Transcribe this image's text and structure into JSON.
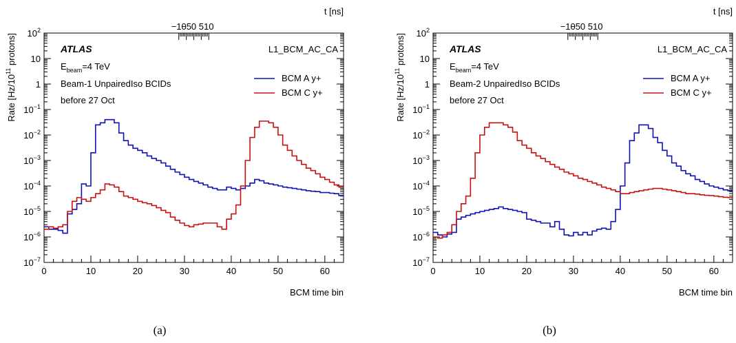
{
  "chart_data": [
    {
      "type": "line",
      "panel_label": "(a)",
      "xlabel": "BCM time bin",
      "ylabel": "Rate [Hz/10¹¹ protons]",
      "top_axis_label": "t [ns]",
      "xlim": [
        0,
        64
      ],
      "ylim": [
        1e-07,
        100
      ],
      "y_scale": "log",
      "x_ticks": [
        0,
        10,
        20,
        30,
        40,
        50,
        60
      ],
      "top_ticks": [
        -10,
        -5,
        0,
        5,
        10
      ],
      "y_ticks": [
        "10⁻⁷",
        "10⁻⁶",
        "10⁻⁵",
        "10⁻⁴",
        "10⁻³",
        "10⁻²",
        "10⁻¹",
        "1",
        "10",
        "10²"
      ],
      "texts": {
        "experiment": "ATLAS",
        "energy_prefix": "E",
        "energy_sub": "beam",
        "energy_suffix": "=4 TeV",
        "selection": "Beam-1 UnpairedIso BCIDs",
        "period": "before 27 Oct",
        "trigger": "L1_BCM_AC_CA"
      },
      "legend_position": "top-right",
      "series": [
        {
          "name": "BCM A y+",
          "color": "#1010b4",
          "values": [
            2.5e-06,
            2e-06,
            2e-06,
            1.8e-06,
            1.4e-06,
            8e-06,
            1.2e-05,
            2e-05,
            0.00012,
            0.0001,
            0.002,
            0.025,
            0.03,
            0.04,
            0.04,
            0.03,
            0.012,
            0.006,
            0.004,
            0.003,
            0.0025,
            0.002,
            0.0015,
            0.0012,
            0.001,
            0.0008,
            0.0006,
            0.00045,
            0.00035,
            0.00028,
            0.00022,
            0.00018,
            0.00015,
            0.00013,
            0.00011,
            9e-05,
            8e-05,
            7e-05,
            7e-05,
            9e-05,
            8e-05,
            7e-05,
            8e-05,
            0.0001,
            0.00013,
            0.00018,
            0.00016,
            0.00013,
            0.00012,
            0.00011,
            0.0001,
            9e-05,
            8.5e-05,
            8e-05,
            7.5e-05,
            7e-05,
            6.5e-05,
            6.2e-05,
            6e-05,
            5.5e-05,
            5.5e-05,
            5.2e-05,
            5e-05,
            4.2e-05
          ]
        },
        {
          "name": "BCM C y+",
          "color": "#c81010",
          "values": [
            2e-06,
            2.5e-06,
            2.2e-06,
            2.5e-06,
            3e-06,
            1e-05,
            2.5e-05,
            3.5e-05,
            3e-05,
            2.5e-05,
            3.5e-05,
            5e-05,
            7e-05,
            0.00012,
            0.00011,
            9e-05,
            6e-05,
            4e-05,
            3.5e-05,
            3e-05,
            2.5e-05,
            2.2e-05,
            2e-05,
            1.7e-05,
            1.4e-05,
            1.1e-05,
            9e-06,
            6e-06,
            4.5e-06,
            3.5e-06,
            2.8e-06,
            2.5e-06,
            3e-06,
            3.2e-06,
            3.5e-06,
            3.5e-06,
            3.5e-06,
            2.5e-06,
            2e-06,
            5e-06,
            8e-06,
            1.8e-05,
            0.0001,
            0.001,
            0.008,
            0.02,
            0.035,
            0.035,
            0.03,
            0.02,
            0.01,
            0.004,
            0.0025,
            0.0015,
            0.001,
            0.0007,
            0.0005,
            0.0004,
            0.0003,
            0.00022,
            0.00018,
            0.00014,
            0.00011,
            9e-05
          ]
        }
      ]
    },
    {
      "type": "line",
      "panel_label": "(b)",
      "xlabel": "BCM time bin",
      "ylabel": "Rate [Hz/10¹¹ protons]",
      "top_axis_label": "t [ns]",
      "xlim": [
        0,
        64
      ],
      "ylim": [
        1e-07,
        100
      ],
      "y_scale": "log",
      "x_ticks": [
        0,
        10,
        20,
        30,
        40,
        50,
        60
      ],
      "top_ticks": [
        -10,
        -5,
        0,
        5,
        10
      ],
      "y_ticks": [
        "10⁻⁷",
        "10⁻⁶",
        "10⁻⁵",
        "10⁻⁴",
        "10⁻³",
        "10⁻²",
        "10⁻¹",
        "1",
        "10",
        "10²"
      ],
      "texts": {
        "experiment": "ATLAS",
        "energy_prefix": "E",
        "energy_sub": "beam",
        "energy_suffix": "=4 TeV",
        "selection": "Beam-2 UnpairedIso BCIDs",
        "period": "before 27 Oct",
        "trigger": "L1_BCM_AC_CA"
      },
      "legend_position": "top-right",
      "series": [
        {
          "name": "BCM A y+",
          "color": "#1010b4",
          "values": [
            1.5e-06,
            1.2e-06,
            1e-06,
            1.3e-06,
            1.5e-06,
            5e-06,
            6e-06,
            7e-06,
            8e-06,
            9e-06,
            1e-05,
            1.1e-05,
            1.2e-05,
            1.3e-05,
            1.5e-05,
            1.3e-05,
            1.2e-05,
            1.1e-05,
            1e-05,
            9e-06,
            5e-06,
            4.5e-06,
            4e-06,
            3.5e-06,
            3.5e-06,
            2.5e-06,
            4e-06,
            2e-06,
            1.2e-06,
            1.1e-06,
            1.5e-06,
            1.2e-06,
            1.5e-06,
            1.2e-06,
            1.7e-06,
            2e-06,
            2.2e-06,
            2e-06,
            4e-06,
            1.2e-05,
            0.0001,
            0.0008,
            0.006,
            0.012,
            0.025,
            0.025,
            0.018,
            0.008,
            0.005,
            0.0025,
            0.0015,
            0.0008,
            0.0006,
            0.0004,
            0.0003,
            0.00025,
            0.00018,
            0.00015,
            0.00012,
            0.0001,
            9e-05,
            8e-05,
            7e-05,
            6.5e-05
          ]
        },
        {
          "name": "BCM C y+",
          "color": "#c81010",
          "values": [
            1e-06,
            9e-07,
            1.2e-06,
            1.5e-06,
            3e-06,
            1e-05,
            2e-05,
            4e-05,
            0.0002,
            0.002,
            0.01,
            0.02,
            0.03,
            0.03,
            0.03,
            0.025,
            0.02,
            0.013,
            0.006,
            0.004,
            0.003,
            0.002,
            0.0015,
            0.0012,
            0.0009,
            0.0007,
            0.00055,
            0.00045,
            0.00035,
            0.0003,
            0.00025,
            0.0002,
            0.00018,
            0.00015,
            0.00013,
            0.00011,
            9e-05,
            8e-05,
            7e-05,
            6e-05,
            5e-05,
            5e-05,
            5.5e-05,
            6e-05,
            6.5e-05,
            7e-05,
            7.5e-05,
            8e-05,
            8e-05,
            7.5e-05,
            7e-05,
            6.5e-05,
            6e-05,
            5.5e-05,
            5e-05,
            5e-05,
            4.8e-05,
            4.5e-05,
            4.3e-05,
            4.2e-05,
            4e-05,
            3.8e-05,
            3.6e-05,
            3.5e-05
          ]
        }
      ]
    }
  ]
}
